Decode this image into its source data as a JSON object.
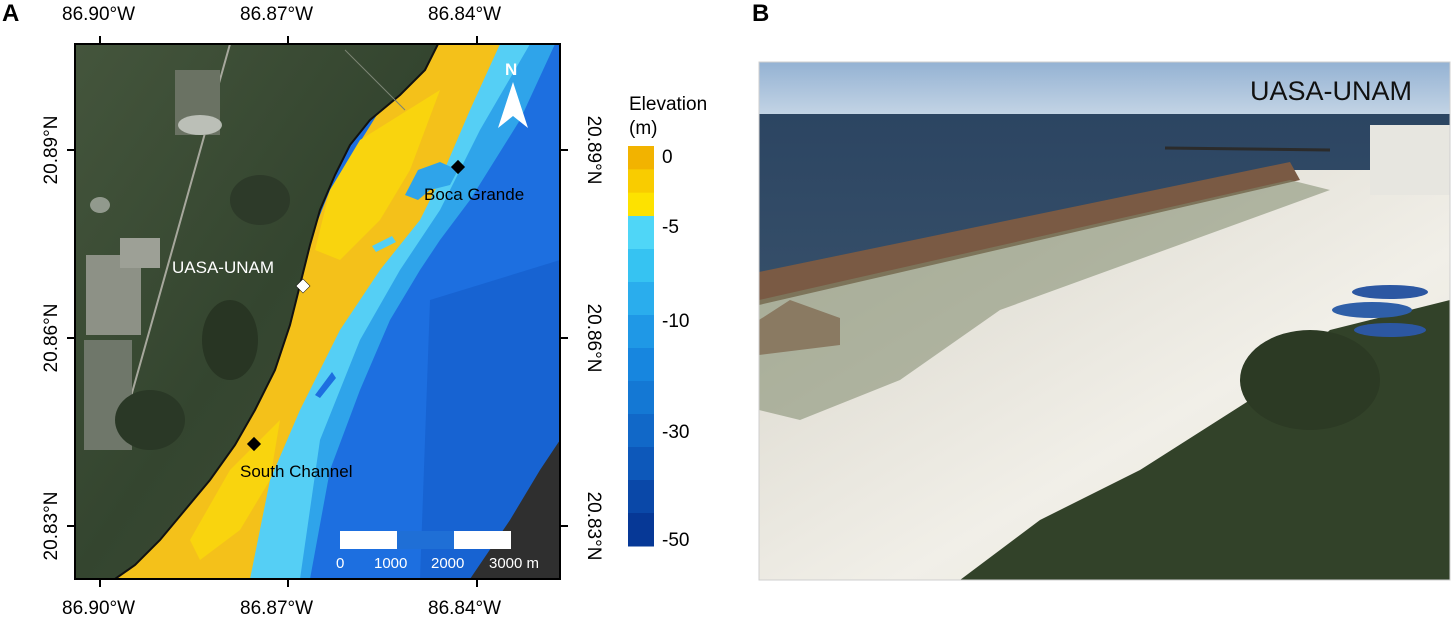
{
  "panel_a": {
    "letter": "A",
    "lon_ticks_top": [
      "86.90°W",
      "86.87°W",
      "86.84°W"
    ],
    "lon_ticks_bottom": [
      "86.90°W",
      "86.87°W",
      "86.84°W"
    ],
    "lat_ticks_left": [
      "20.89°N",
      "20.86°N",
      "20.83°N"
    ],
    "lat_ticks_right": [
      "20.89°N",
      "20.86°N",
      "20.83°N"
    ],
    "north_arrow": "N",
    "sites": {
      "uasa": "UASA-UNAM",
      "boca": "Boca Grande",
      "south": "South Channel"
    },
    "scale_bar": {
      "labels": [
        "0",
        "1000",
        "2000",
        "3000 m"
      ],
      "colors": [
        "#ffffff",
        "#1f6fd6",
        "#ffffff"
      ]
    }
  },
  "colorbar": {
    "title_line1": "Elevation",
    "title_line2": "(m)",
    "ticks": [
      "0",
      "-5",
      "-10",
      "-30",
      "-50"
    ],
    "colors_top_to_bottom": [
      "#f2b300",
      "#f9cc00",
      "#fde200",
      "#4fd6f7",
      "#36c3f2",
      "#2aaded",
      "#1f98e6",
      "#1786df",
      "#1478d4",
      "#1168c8",
      "#0d58ba",
      "#0a48a8",
      "#063896"
    ]
  },
  "panel_b": {
    "letter": "B",
    "photo_label": "UASA-UNAM"
  },
  "colors": {
    "land": "#3b4a36",
    "shallow": "#f6c21a",
    "mid": "#2fa6ea",
    "deep": "#1c6fe0",
    "sea_photo": "#2e4560",
    "sky_photo": "#a8c2dc"
  }
}
